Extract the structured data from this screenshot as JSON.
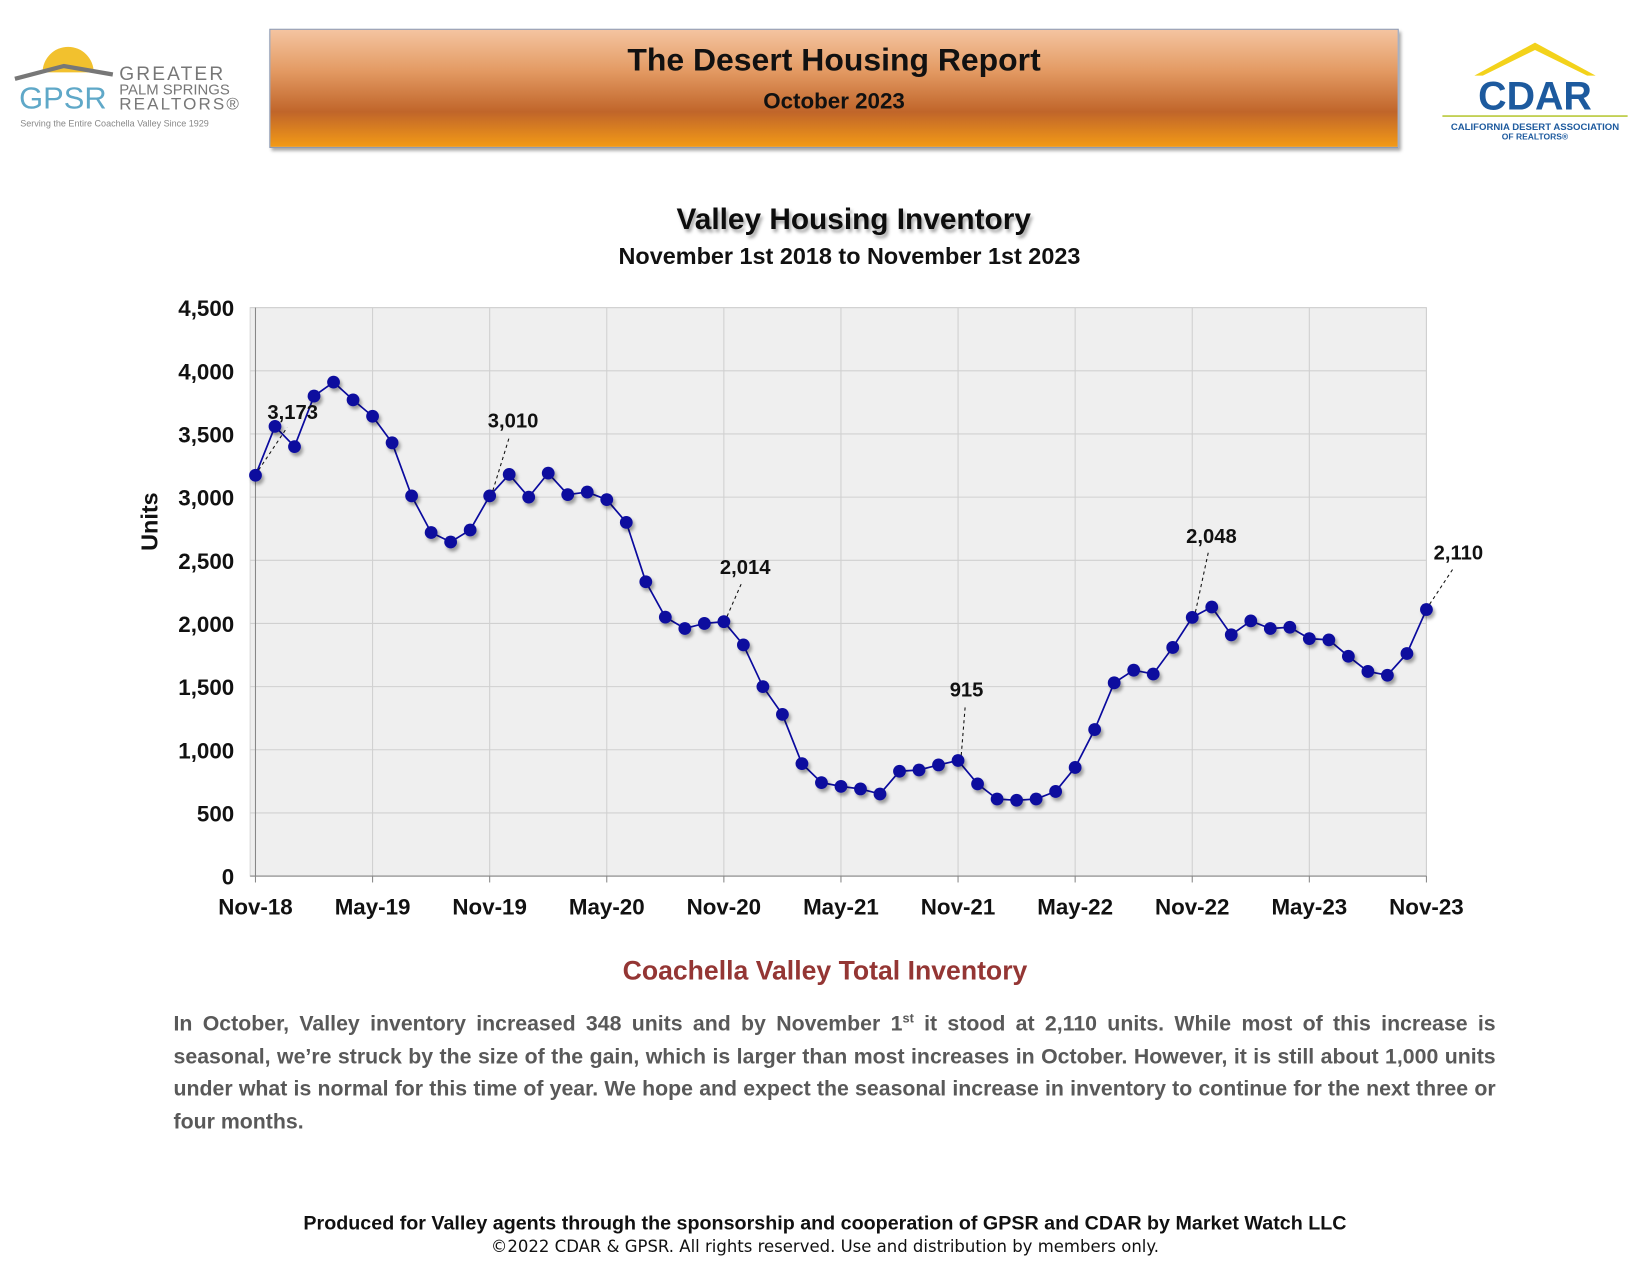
{
  "header": {
    "title": "The Desert Housing Report",
    "subtitle": "October 2023"
  },
  "logos": {
    "gpsr": {
      "mark": "GPSR",
      "line1": "GREATER",
      "line2": "PALM SPRINGS",
      "line3": "REALTORS®",
      "tagline": "Serving the Entire Coachella Valley Since 1929"
    },
    "cdar": {
      "mark": "CDAR",
      "line1": "CALIFORNIA DESERT ASSOCIATION",
      "line2": "OF REALTORS®"
    }
  },
  "chart_data": {
    "type": "line",
    "title": "Valley Housing Inventory",
    "subtitle": "November 1st 2018 to November 1st 2023",
    "y_label": "Units",
    "categories": [
      "Nov-18",
      null,
      null,
      null,
      null,
      null,
      "May-19",
      null,
      null,
      null,
      null,
      null,
      "Nov-19",
      null,
      null,
      null,
      null,
      null,
      "May-20",
      null,
      null,
      null,
      null,
      null,
      "Nov-20",
      null,
      null,
      null,
      null,
      null,
      "May-21",
      null,
      null,
      null,
      null,
      null,
      "Nov-21",
      null,
      null,
      null,
      null,
      null,
      "May-22",
      null,
      null,
      null,
      null,
      null,
      "Nov-22",
      null,
      null,
      null,
      null,
      null,
      "May-23",
      null,
      null,
      null,
      null,
      null,
      "Nov-23"
    ],
    "values": [
      3173,
      3560,
      3400,
      3800,
      3910,
      3770,
      3640,
      3430,
      3010,
      2720,
      2645,
      2740,
      3010,
      3180,
      3000,
      3190,
      3020,
      3040,
      2980,
      2800,
      2330,
      2050,
      1960,
      2000,
      2014,
      1830,
      1500,
      1280,
      890,
      740,
      710,
      690,
      650,
      830,
      840,
      880,
      915,
      730,
      610,
      600,
      610,
      670,
      860,
      1160,
      1530,
      1630,
      1600,
      1810,
      2048,
      2130,
      1910,
      2020,
      1960,
      1970,
      1880,
      1870,
      1740,
      1620,
      1590,
      1762,
      2110
    ],
    "value_labels": [
      "3,173",
      null,
      null,
      null,
      null,
      null,
      null,
      null,
      null,
      null,
      null,
      null,
      "3,010",
      null,
      null,
      null,
      null,
      null,
      null,
      null,
      null,
      null,
      null,
      null,
      "2,014",
      null,
      null,
      null,
      null,
      null,
      null,
      null,
      null,
      null,
      null,
      null,
      "915",
      null,
      null,
      null,
      null,
      null,
      null,
      null,
      null,
      null,
      null,
      null,
      "2,048",
      null,
      null,
      null,
      null,
      null,
      null,
      null,
      null,
      null,
      null,
      null,
      "2,110"
    ],
    "color": "#0a0a9e",
    "ylim": [
      0,
      4500
    ],
    "yticks": [
      0,
      500,
      {
        "value": 1000,
        "label": "1,000"
      },
      {
        "value": 1500,
        "label": "1,500"
      },
      {
        "value": 2000,
        "label": "2,000"
      },
      {
        "value": 2500,
        "label": "2,500"
      },
      {
        "value": 3000,
        "label": "3,000"
      },
      {
        "value": 3500,
        "label": "3,500"
      },
      {
        "value": 4000,
        "label": "4,000"
      },
      {
        "value": 4500,
        "label": "4,500"
      }
    ],
    "grid": true
  },
  "caption": "Coachella Valley Total Inventory",
  "commentary": {
    "before": "In October, Valley inventory increased 348 units and by November 1",
    "sup": "st",
    "after": " it stood at 2,110 units. While most of this increase is seasonal, we’re struck by the size of the gain, which is larger than most increases in October. However, it is still about 1,000 units under what is normal for this time of year. We hope and expect the seasonal increase in inventory to continue for the next three or four months."
  },
  "footer": {
    "line1": "Produced for Valley agents through the sponsorship and cooperation of GPSR and CDAR by Market Watch LLC",
    "line2": "©2022 CDAR & GPSR.  All rights reserved.  Use and distribution by members only."
  }
}
